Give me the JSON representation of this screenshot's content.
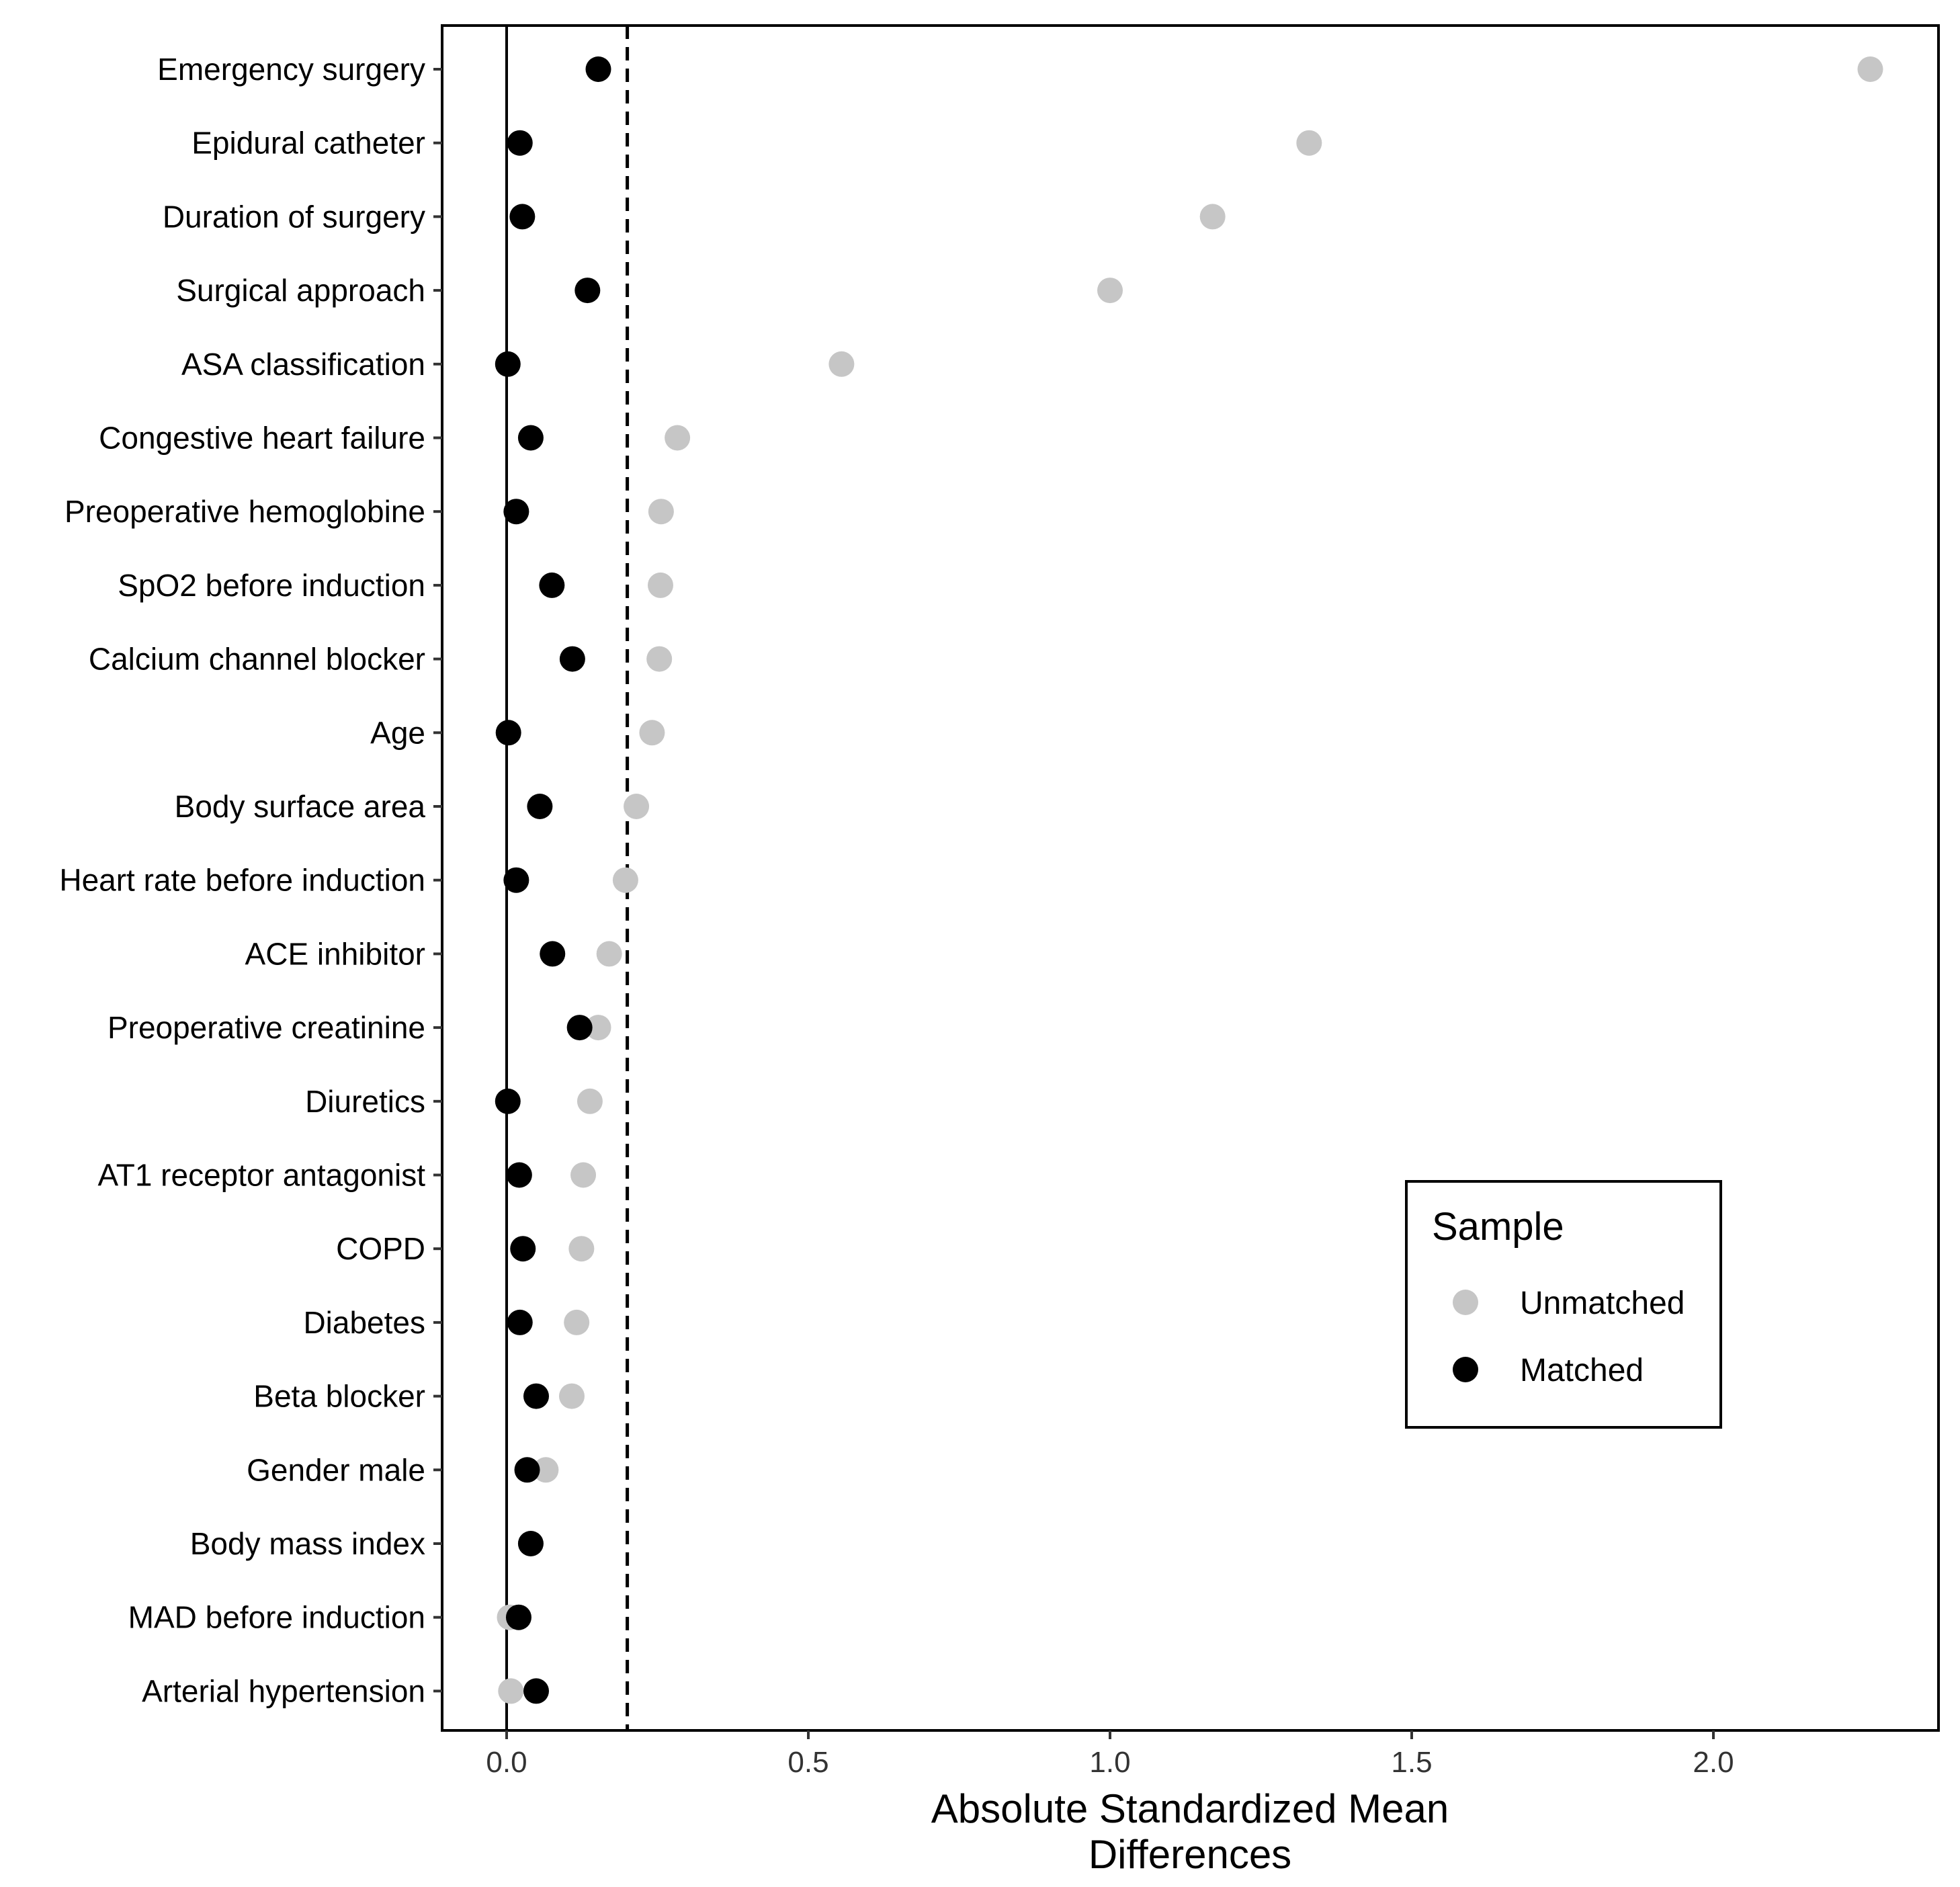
{
  "chart_data": {
    "type": "scatter",
    "title": "",
    "xlabel_lines": [
      "Absolute Standardized Mean",
      "Differences"
    ],
    "ylabel": "",
    "xlim": [
      -0.11,
      2.37
    ],
    "xticks": [
      0.0,
      0.5,
      1.0,
      1.5,
      2.0
    ],
    "xtick_labels": [
      "0.0",
      "0.5",
      "1.0",
      "1.5",
      "2.0"
    ],
    "reference_lines": [
      {
        "x": 0.0,
        "style": "solid"
      },
      {
        "x": 0.2,
        "style": "dashed"
      }
    ],
    "categories": [
      "Emergency surgery",
      "Epidural catheter",
      "Duration of surgery",
      "Surgical approach",
      "ASA classification",
      "Congestive heart failure",
      "Preoperative hemoglobine",
      "SpO2 before induction",
      "Calcium channel blocker",
      "Age",
      "Body surface area",
      "Heart rate before induction",
      "ACE inhibitor",
      "Preoperative creatinine",
      "Diuretics",
      "AT1 receptor antagonist",
      "COPD",
      "Diabetes",
      "Beta blocker",
      "Gender male",
      "Body mass index",
      "MAD before induction",
      "Arterial hypertension"
    ],
    "series": [
      {
        "name": "Unmatched",
        "color": "#c6c6c6",
        "values": [
          2.26,
          1.33,
          1.17,
          1.0,
          0.555,
          0.283,
          0.256,
          0.255,
          0.253,
          0.241,
          0.215,
          0.197,
          0.17,
          0.152,
          0.138,
          0.127,
          0.124,
          0.116,
          0.108,
          0.065,
          0.04,
          0.005,
          0.007
        ]
      },
      {
        "name": "Matched",
        "color": "#000000",
        "values": [
          0.152,
          0.022,
          0.026,
          0.134,
          0.002,
          0.04,
          0.016,
          0.075,
          0.109,
          0.003,
          0.055,
          0.016,
          0.076,
          0.121,
          0.002,
          0.021,
          0.027,
          0.022,
          0.049,
          0.034,
          0.04,
          0.02,
          0.049
        ]
      }
    ],
    "legend": {
      "title": "Sample",
      "entries": [
        "Unmatched",
        "Matched"
      ],
      "position": "lower-right"
    }
  }
}
